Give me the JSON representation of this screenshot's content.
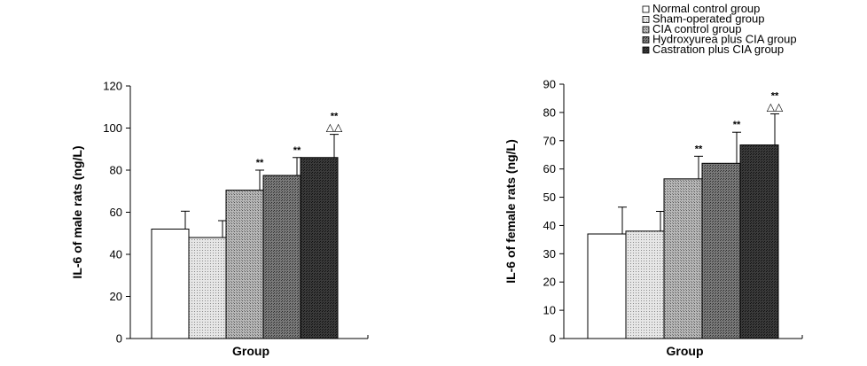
{
  "legend": [
    {
      "label": "Normal control group",
      "color": "#ffffff"
    },
    {
      "label": "Sham-operated group",
      "color": "#d9d9d9"
    },
    {
      "label": "CIA control group",
      "color": "#a6a6a6"
    },
    {
      "label": "Hydroxyurea plus CIA group",
      "color": "#6e6e6e"
    },
    {
      "label": "Castration plus CIA group",
      "color": "#333333"
    }
  ],
  "chart_data": [
    {
      "type": "bar",
      "title": "",
      "xlabel": "Group",
      "ylabel": "IL-6 of male rats (ng/L)",
      "ylim": [
        0,
        120
      ],
      "yticks": [
        0,
        20,
        40,
        60,
        80,
        100,
        120
      ],
      "categories": [
        "Normal control group",
        "Sham-operated group",
        "CIA control group",
        "Hydroxyurea plus CIA group",
        "Castration plus CIA group"
      ],
      "values": [
        52,
        48,
        70.5,
        77.5,
        86
      ],
      "errors": [
        8.5,
        8,
        9.5,
        8.5,
        11
      ],
      "annotations": [
        {
          "bar": 2,
          "text": "**"
        },
        {
          "bar": 3,
          "text": "**"
        },
        {
          "bar": 4,
          "text": "**"
        },
        {
          "bar": 4,
          "text": "△△"
        }
      ]
    },
    {
      "type": "bar",
      "title": "",
      "xlabel": "Group",
      "ylabel": "IL-6 of female rats (ng/L)",
      "ylim": [
        0,
        90
      ],
      "yticks": [
        0,
        10,
        20,
        30,
        40,
        50,
        60,
        70,
        80,
        90
      ],
      "categories": [
        "Normal control group",
        "Sham-operated group",
        "CIA control group",
        "Hydroxyurea plus CIA group",
        "Castration plus CIA group"
      ],
      "values": [
        37,
        38,
        56.5,
        62,
        68.5
      ],
      "errors": [
        9.5,
        7,
        8,
        11,
        11
      ],
      "annotations": [
        {
          "bar": 2,
          "text": "**"
        },
        {
          "bar": 3,
          "text": "**"
        },
        {
          "bar": 4,
          "text": "**"
        },
        {
          "bar": 4,
          "text": "△△"
        }
      ]
    }
  ]
}
